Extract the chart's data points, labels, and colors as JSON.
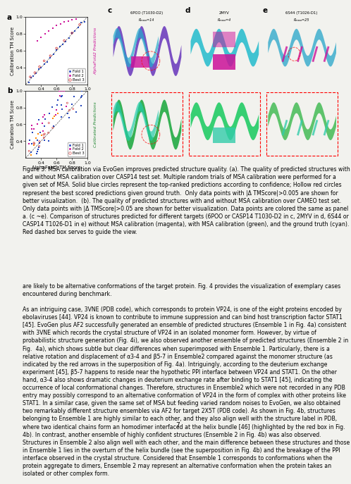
{
  "page_number": "7",
  "fig_caption_prefix": "Figure 3: ",
  "fig_caption_bold": "MSA calibration via EvoGen improves predicted structure quality.",
  "fig_caption_text": " (a). The quality of predicted structures with and without MSA calibration over CASP14 test set. Multiple random trials of MSA calibration were performed for a given set of MSA. Solid blue circles represent the top-ranked predictions according to confidence; Hollow red circles represent the best scored predictions given ground truth.  Only data points with |Δ TMScore|>0.005 are shown for better visualization.  (b). The quality of predicted structures with and without MSA calibration over CAMEO test set. Only data points with |Δ TMScore|>0.05 are shown for better visualization. Data points are colored the same as panel a. (c ~e). Comparison of structures predicted for different targets (6POO or CASP14 T1030-D2 in c, 2MYV in d, 6S44 or CASP14 T1026-D1 in e) without MSA calibration (magenta), with MSA calibration (green), and the ground truth (cyan). Red dashed box serves to guide the view.",
  "body_text_1": "are likely to be alternative conformations of the target protein. Fig. 4 provides the visualization of exemplary cases encountered during benchmark.",
  "body_text_2": "As an intriguing case, 3VNE (PDB code), which corresponds to protein VP24, is one of the eight proteins encoded by ebolaviruses [44]. VP24 is known to contribute to immune suppression and can bind host transcription factor STAT1 [45]. EvoGen plus AF2 successfully generated an ensemble of predicted structures (Ensemble 1 in Fig. 4a) consistent with 3VNE which records the crystal structure of VP24 in an isolated monomer form. However, by virtue of probabilistic structure generation (Fig. 4i), we also observed another ensemble of predicted structures (Ensemble 2 in Fig.  4a), which shows subtle but clear differences when superimposed with Ensemble 1. Particularly, there is a relative rotation and displacement of α3-4 and β5-7 in Ensemble2 compared against the monomer structure (as indicated by the red arrows in the superposition of Fig. 4a). Intriguingly, according to the deuterium exchange experiment [45], β5-7 happens to reside near the hypothetic PPI interface between VP24 and STAT1. On the other hand, α3-4 also shows dramatic changes in deuterium exchange rate after binding to STAT1 [45], indicating the occurrence of local conformational changes. Therefore, structures in Ensemble2 which were not recorded in any PDB entry may possibly correspond to an alternative conformation of VP24 in the form of complex with other proteins like STAT1. In a similar case, given the same set of MSA but feeding varied random noises to EvoGen, we also obtained two remarkably different structure ensembles via AF2 for target 2X5T (PDB code). As shown in Fig. 4b, structures belonging to Ensemble 1 are highly similar to each other, and they also align well with the structure label in PDB, where two identical chains form an homodimer interfaced at the helix bundle [46] (highlighted by the red box in Fig. 4b). In contrast, another ensemble of highly confident structures (Ensemble 2 in Fig. 4b) was also observed. Structures in Ensemble 2 also align well with each other, and the main difference between these structures and those in Ensemble 1 lies in the overturn of the helix bundle (see the superposition in Fig. 4b) and the breakage of the PPI interface observed in the crystal structure. Considered that Ensemble 1 corresponds to conformations when the protein aggregate to dimers, Ensemble 2 may represent an alternative conformation when the protein takes an isolated or other complex form.",
  "panel_labels": [
    "a",
    "b",
    "c",
    "d",
    "e"
  ],
  "panel_c_title": "6POO (T1030-D2)",
  "panel_c_sub": "Rₘₐₐₐ=14",
  "panel_d_title": "2MYV",
  "panel_d_sub": "Rₘₐₐₐ=4",
  "panel_e_title": "6S44 (T1026-D1)",
  "panel_e_sub": "Rₘₐₐₐ=25",
  "xlabel_ab": "AlphaFold2 TM Score",
  "ylabel_ab": "Calibration TM Score",
  "legend_fold1": "Fold 1",
  "legend_fold2": "Fold 2",
  "legend_best": "Best 3",
  "color_blue": "#2244bb",
  "color_magenta": "#cc1199",
  "color_red_hollow": "#cc2222",
  "color_orange": "#ff8800",
  "color_purple": "#7700cc",
  "color_diagonal": "#555555",
  "vertical_top": "AlphaFold2 Predictions",
  "vertical_bot": "Calibrated Predictions",
  "bg_color": "#f2f2ee",
  "fontsize_body": 5.6,
  "fontsize_caption": 5.6,
  "fontsize_tick": 4.5,
  "fontsize_axlabel": 4.8,
  "fontsize_legend": 3.8,
  "fontsize_panel": 7.5
}
